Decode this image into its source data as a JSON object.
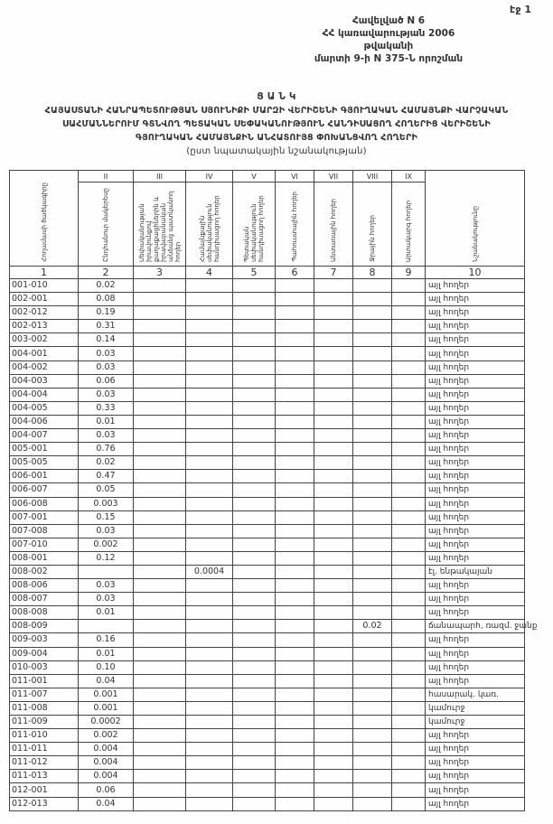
{
  "page_label": "էջ 1",
  "annex": {
    "line1": "Հավելված N 6",
    "line2": "ՀՀ կառավարության 2006 թվականի",
    "line3": "մարտի 9-ի N 375-Ն որոշման"
  },
  "title": {
    "heading": "Ց Ա Ն Կ",
    "line1": "ՀԱՅԱՍՏԱՆԻ ՀԱՆՐԱՊԵՏՈՒԹՅԱՆ ՍՅՈՒՆԻՔԻ ՄԱՐԶԻ ՎԵՐԻՇԵՆԻ ԳՅՈՒՂԱԿԱՆ ՀԱՄԱՅՆՔԻ ՎԱՐՉԱԿԱՆ",
    "line2": "ՍԱՀՄԱՆՆԵՐՈՒՄ ԳՏՆՎՈՂ ՊԵՏԱԿԱՆ ՍԵՓԱԿԱՆՈՒԹՅՈՒՆ ՀԱՆԴԻՍԱՑՈՂ ՀՈՂԵՐԻՑ ՎԵՐԻՇԵՆԻ",
    "line3": "ԳՅՈՒՂԱԿԱՆ ՀԱՄԱՅՆՔԻՆ ԱՆՀԱՏՈՒՅՑ ՓՈԽԱՆՑՎՈՂ ՀՈՂԵՐԻ",
    "subtitle": "(ըստ նպատակային նշանակության)"
  },
  "table": {
    "roman": [
      "",
      "II",
      "III",
      "IV",
      "V",
      "VI",
      "VII",
      "VIII",
      "IX",
      ""
    ],
    "headers": [
      "Հողամասի ծածկագիրը",
      "Ընդհանուր մակերեսը",
      "Սեփականության իրավունքով քաղաքացիներին և իրավաբանական անձանց պատկանող հողեր",
      "Համայնքային սեփականություն հանդիսացող հողեր",
      "Պետական սեփականություն հանդիսացող հողեր",
      "Պահուստային հողեր",
      "Անտառային հողեր",
      "Ջրային հողեր",
      "Արտակարգ հողեր",
      "Նշանակությունը"
    ],
    "numbers": [
      "1",
      "2",
      "3",
      "4",
      "5",
      "6",
      "7",
      "8",
      "9",
      "10"
    ],
    "rows": [
      {
        "code": "001-010",
        "area": "0.02",
        "c4": "",
        "c8": "",
        "purpose": "այլ հողեր"
      },
      {
        "code": "002-001",
        "area": "0.08",
        "c4": "",
        "c8": "",
        "purpose": "այլ հողեր"
      },
      {
        "code": "002-012",
        "area": "0.19",
        "c4": "",
        "c8": "",
        "purpose": "այլ հողեր"
      },
      {
        "code": "002-013",
        "area": "0.31",
        "c4": "",
        "c8": "",
        "purpose": "այլ հողեր"
      },
      {
        "code": "003-002",
        "area": "0.14",
        "c4": "",
        "c8": "",
        "purpose": "այլ հողեր"
      },
      {
        "code": "004-001",
        "area": "0.03",
        "c4": "",
        "c8": "",
        "purpose": "այլ հողեր"
      },
      {
        "code": "004-002",
        "area": "0.03",
        "c4": "",
        "c8": "",
        "purpose": "այլ հողեր"
      },
      {
        "code": "004-003",
        "area": "0.06",
        "c4": "",
        "c8": "",
        "purpose": "այլ հողեր"
      },
      {
        "code": "004-004",
        "area": "0.03",
        "c4": "",
        "c8": "",
        "purpose": "այլ հողեր"
      },
      {
        "code": "004-005",
        "area": "0.33",
        "c4": "",
        "c8": "",
        "purpose": "այլ հողեր"
      },
      {
        "code": "004-006",
        "area": "0.01",
        "c4": "",
        "c8": "",
        "purpose": "այլ հողեր"
      },
      {
        "code": "004-007",
        "area": "0.03",
        "c4": "",
        "c8": "",
        "purpose": "այլ հողեր"
      },
      {
        "code": "005-001",
        "area": "0.76",
        "c4": "",
        "c8": "",
        "purpose": "այլ հողեր"
      },
      {
        "code": "005-005",
        "area": "0.02",
        "c4": "",
        "c8": "",
        "purpose": "այլ հողեր"
      },
      {
        "code": "006-001",
        "area": "0.47",
        "c4": "",
        "c8": "",
        "purpose": "այլ հողեր"
      },
      {
        "code": "006-007",
        "area": "0.05",
        "c4": "",
        "c8": "",
        "purpose": "այլ հողեր"
      },
      {
        "code": "006-008",
        "area": "0.003",
        "c4": "",
        "c8": "",
        "purpose": "այլ հողեր"
      },
      {
        "code": "007-001",
        "area": "0.15",
        "c4": "",
        "c8": "",
        "purpose": "այլ հողեր"
      },
      {
        "code": "007-008",
        "area": "0.03",
        "c4": "",
        "c8": "",
        "purpose": "այլ հողեր"
      },
      {
        "code": "007-010",
        "area": "0.002",
        "c4": "",
        "c8": "",
        "purpose": "այլ հողեր"
      },
      {
        "code": "008-001",
        "area": "0.12",
        "c4": "",
        "c8": "",
        "purpose": "այլ հողեր"
      },
      {
        "code": "008-002",
        "area": "",
        "c4": "0.0004",
        "c8": "",
        "purpose": "էլ. ենթակայան"
      },
      {
        "code": "008-006",
        "area": "0.03",
        "c4": "",
        "c8": "",
        "purpose": "այլ հողեր"
      },
      {
        "code": "008-007",
        "area": "0.03",
        "c4": "",
        "c8": "",
        "purpose": "այլ հողեր"
      },
      {
        "code": "008-008",
        "area": "0.01",
        "c4": "",
        "c8": "",
        "purpose": "այլ հողեր"
      },
      {
        "code": "008-009",
        "area": "",
        "c4": "",
        "c8": "0.02",
        "purpose": "ճանապարհ, ռազմ. ջանք"
      },
      {
        "code": "009-003",
        "area": "0.16",
        "c4": "",
        "c8": "",
        "purpose": "այլ հողեր"
      },
      {
        "code": "009-004",
        "area": "0.01",
        "c4": "",
        "c8": "",
        "purpose": "այլ հողեր"
      },
      {
        "code": "010-003",
        "area": "0.10",
        "c4": "",
        "c8": "",
        "purpose": "այլ հողեր"
      },
      {
        "code": "011-001",
        "area": "0.04",
        "c4": "",
        "c8": "",
        "purpose": "այլ հողեր"
      },
      {
        "code": "011-007",
        "area": "0.001",
        "c4": "",
        "c8": "",
        "purpose": "հասարակ. կառ."
      },
      {
        "code": "011-008",
        "area": "0.001",
        "c4": "",
        "c8": "",
        "purpose": "կամուրջ"
      },
      {
        "code": "011-009",
        "area": "0.0002",
        "c4": "",
        "c8": "",
        "purpose": "կամուրջ"
      },
      {
        "code": "011-010",
        "area": "0.002",
        "c4": "",
        "c8": "",
        "purpose": "այլ հողեր"
      },
      {
        "code": "011-011",
        "area": "0.004",
        "c4": "",
        "c8": "",
        "purpose": "այլ հողեր"
      },
      {
        "code": "011-012",
        "area": "0.004",
        "c4": "",
        "c8": "",
        "purpose": "այլ հողեր"
      },
      {
        "code": "011-013",
        "area": "0.004",
        "c4": "",
        "c8": "",
        "purpose": "այլ հողեր"
      },
      {
        "code": "012-001",
        "area": "0.06",
        "c4": "",
        "c8": "",
        "purpose": "այլ հողեր"
      },
      {
        "code": "012-013",
        "area": "0.04",
        "c4": "",
        "c8": "",
        "purpose": "այլ հողեր"
      }
    ]
  }
}
